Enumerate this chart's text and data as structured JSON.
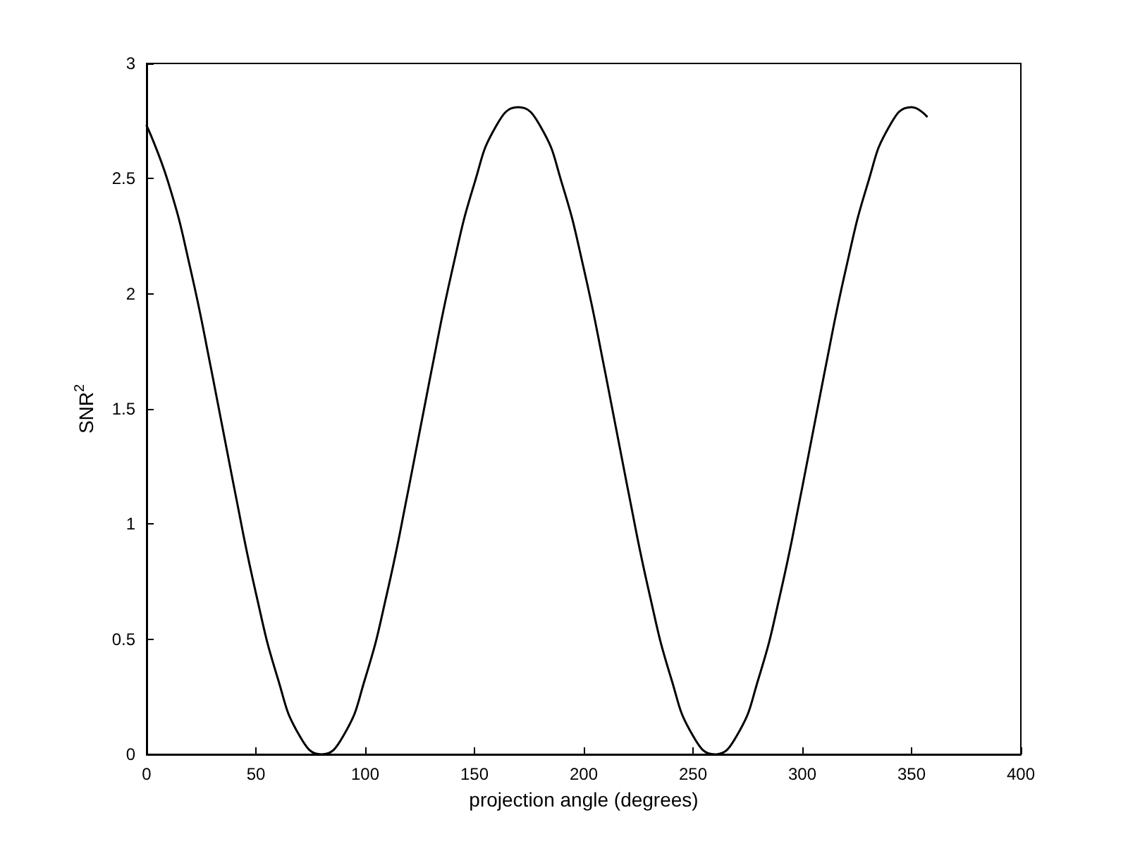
{
  "chart_data": {
    "type": "line",
    "xlabel": "projection angle (degrees)",
    "ylabel": "SNR$^{2}$",
    "x": [
      0,
      10,
      20,
      30,
      40,
      50,
      60,
      70,
      80,
      90,
      100,
      110,
      120,
      130,
      140,
      150,
      160,
      170,
      180,
      190,
      200,
      210,
      220,
      230,
      240,
      250,
      260,
      270,
      280,
      290,
      300,
      310,
      320,
      330,
      340,
      350,
      357
    ],
    "series": [
      {
        "color": "#000000",
        "values": [
          2.73,
          2.48,
          2.11,
          1.65,
          1.16,
          0.7,
          0.33,
          0.08,
          0,
          0.08,
          0.33,
          0.7,
          1.16,
          1.65,
          2.11,
          2.48,
          2.73,
          2.81,
          2.73,
          2.48,
          2.11,
          1.65,
          1.16,
          0.7,
          0.33,
          0.08,
          0,
          0.08,
          0.33,
          0.7,
          1.16,
          1.65,
          2.11,
          2.48,
          2.73,
          2.81,
          2.77
        ]
      }
    ],
    "xlim": [
      0,
      400
    ],
    "xticks": [
      0,
      50,
      100,
      150,
      200,
      250,
      300,
      350,
      400
    ],
    "ylim": [
      0,
      3
    ],
    "yticks": [
      0,
      0.5,
      1,
      1.5,
      2,
      2.5,
      3
    ],
    "grid": false,
    "marker": "none",
    "line_style": "solid"
  }
}
